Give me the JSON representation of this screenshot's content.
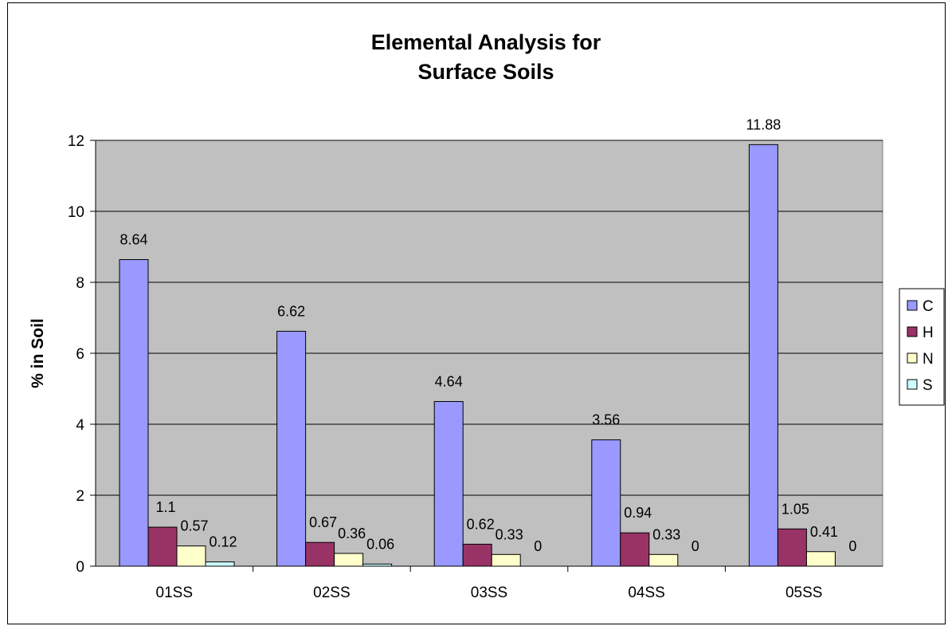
{
  "chart_data": {
    "type": "bar",
    "title_lines": [
      "Elemental Analysis for",
      "Surface Soils"
    ],
    "xlabel": "",
    "ylabel": "% in Soil",
    "ylim": [
      0,
      12
    ],
    "yticks": [
      0,
      2,
      4,
      6,
      8,
      10,
      12
    ],
    "categories": [
      "01SS",
      "02SS",
      "03SS",
      "04SS",
      "05SS"
    ],
    "series": [
      {
        "name": "C",
        "color": "#9999ff",
        "values": [
          8.64,
          6.62,
          4.64,
          3.56,
          11.88
        ],
        "labels": [
          "8.64",
          "6.62",
          "4.64",
          "3.56",
          "11.88"
        ]
      },
      {
        "name": "H",
        "color": "#993366",
        "values": [
          1.1,
          0.67,
          0.62,
          0.94,
          1.05
        ],
        "labels": [
          "1.1",
          "0.67",
          "0.62",
          "0.94",
          "1.05"
        ]
      },
      {
        "name": "N",
        "color": "#ffffcc",
        "values": [
          0.57,
          0.36,
          0.33,
          0.33,
          0.41
        ],
        "labels": [
          "0.57",
          "0.36",
          "0.33",
          "0.33",
          "0.41"
        ]
      },
      {
        "name": "S",
        "color": "#ccffff",
        "values": [
          0.12,
          0.06,
          0,
          0,
          0
        ],
        "labels": [
          "0.12",
          "0.06",
          "0",
          "0",
          "0"
        ]
      }
    ],
    "plot_background": "#c0c0c0",
    "grid": true,
    "legend_position": "right"
  }
}
